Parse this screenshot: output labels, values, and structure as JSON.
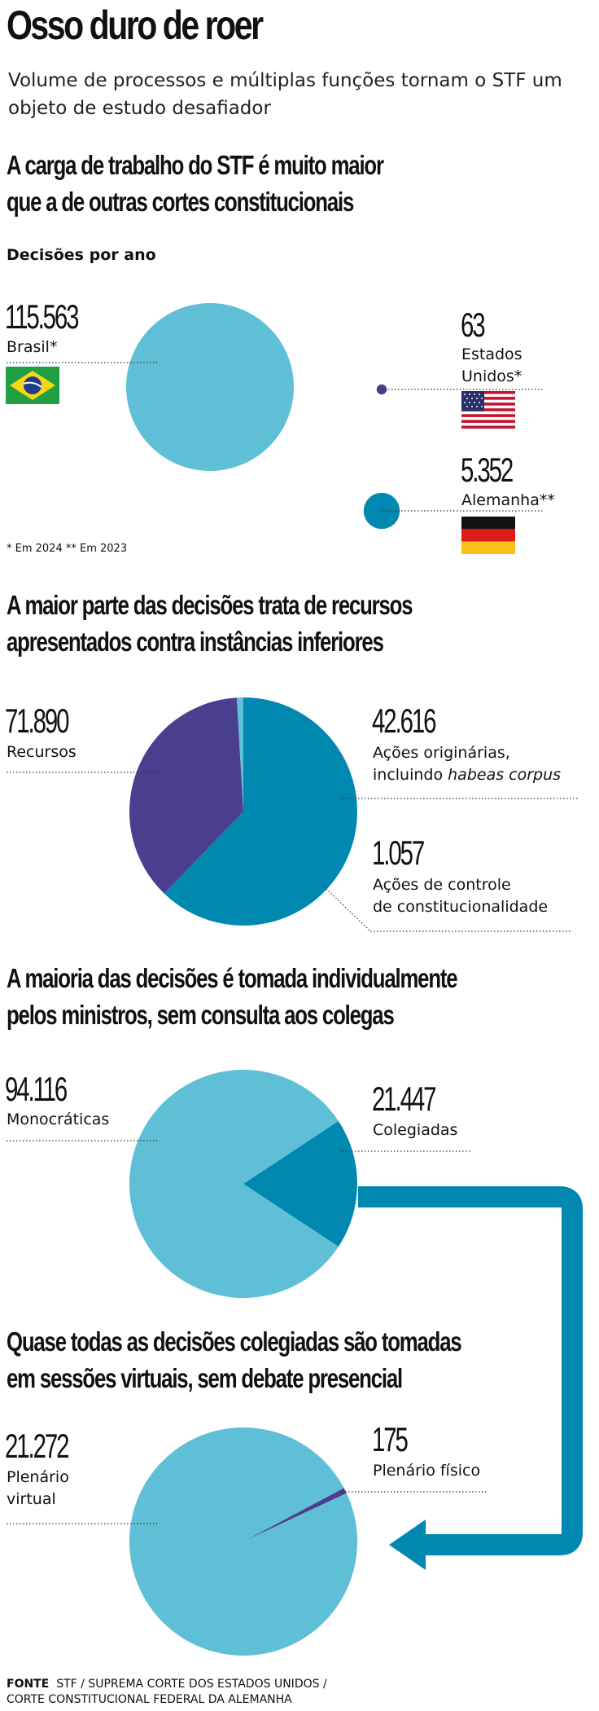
{
  "header": {
    "title": "Osso duro de roer",
    "subtitle": "Volume de processos e múltiplas funções tornam o STF um objeto de estudo desafiador"
  },
  "colors": {
    "light_blue": "#5fbfd6",
    "dark_blue": "#0088b1",
    "purple": "#4a3f8f"
  },
  "sections": {
    "s1": {
      "heading_line1": "A carga de trabalho do STF é muito maior",
      "heading_line2": "que a de outras cortes constitucionais",
      "subheading": "Decisões por ano",
      "brasil_value": "115.563",
      "brasil_label": "Brasil*",
      "eua_value": "63",
      "eua_label_line1": "Estados",
      "eua_label_line2": "Unidos*",
      "alemanha_value": "5.352",
      "alemanha_label": "Alemanha**",
      "footnote": "* Em 2024 ** Em 2023",
      "flags": [
        "brazil-flag",
        "usa-flag",
        "germany-flag"
      ]
    },
    "s2": {
      "heading_line1": "A maior parte das decisões trata de recursos",
      "heading_line2": "apresentados contra instâncias inferiores",
      "recursos_value": "71.890",
      "recursos_label": "Recursos",
      "originarias_value": "42.616",
      "originarias_label_line1": "Ações originárias,",
      "originarias_label_line2_prefix": "incluindo ",
      "originarias_label_line2_italic": "habeas corpus",
      "controle_value": "1.057",
      "controle_label_line1": "Ações de controle",
      "controle_label_line2": "de constitucionalidade"
    },
    "s3": {
      "heading_line1": "A maioria das decisões é tomada individualmente",
      "heading_line2": "pelos ministros, sem consulta aos colegas",
      "mono_value": "94.116",
      "mono_label": "Monocráticas",
      "coleg_value": "21.447",
      "coleg_label": "Colegiadas"
    },
    "s4": {
      "heading_line1": "Quase todas as decisões colegiadas são tomadas",
      "heading_line2": "em sessões virtuais, sem debate presencial",
      "virtual_value": "21.272",
      "virtual_label_line1": "Plenário",
      "virtual_label_line2": "virtual",
      "fisico_value": "175",
      "fisico_label": "Plenário físico"
    }
  },
  "source": {
    "label": "FONTE",
    "line1": "STF / SUPREMA CORTE DOS ESTADOS UNIDOS /",
    "line2": "CORTE CONSTITUCIONAL FEDERAL DA ALEMANHA"
  },
  "chart_data": [
    {
      "type": "bubble",
      "subtitle": "Decisões por ano",
      "categories": [
        "Brasil*",
        "Estados Unidos*",
        "Alemanha**"
      ],
      "values": [
        115563,
        63,
        5352
      ]
    },
    {
      "type": "pie",
      "categories": [
        "Recursos",
        "Ações originárias, incluindo habeas corpus",
        "Ações de controle de constitucionalidade"
      ],
      "values": [
        71890,
        42616,
        1057
      ]
    },
    {
      "type": "pie",
      "categories": [
        "Monocráticas",
        "Colegiadas"
      ],
      "values": [
        94116,
        21447
      ]
    },
    {
      "type": "pie",
      "categories": [
        "Plenário virtual",
        "Plenário físico"
      ],
      "values": [
        21272,
        175
      ]
    }
  ]
}
